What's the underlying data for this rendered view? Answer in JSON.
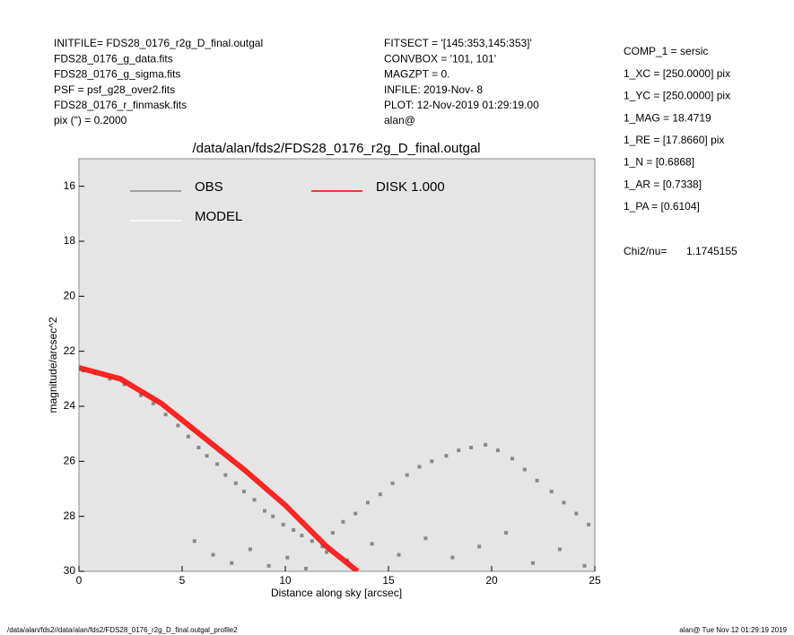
{
  "chart_data": {
    "type": "scatter",
    "title": "/data/alan/fds2/FDS28_0176_r2g_D_final.outgal",
    "xlabel": "Distance along sky [arcsec]",
    "ylabel": "magnitude/arcsec^2",
    "info_left": [
      "INITFILE= FDS28_0176_r2g_D_final.outgal",
      "FDS28_0176_g_data.fits",
      "FDS28_0176_g_sigma.fits",
      "PSF    = psf_g28_over2.fits",
      "FDS28_0176_r_finmask.fits",
      "pix (\") =  0.2000"
    ],
    "info_mid": [
      "FITSECT = '[145:353,145:353]'",
      "CONVBOX = '101, 101'",
      "MAGZPT  =              0.",
      "INFILE: 2019-Nov- 8",
      "PLOT: 12-Nov-2019 01:29:19.00",
      "alan@"
    ],
    "info_right": [
      "COMP_1  = sersic",
      "1_XC    = [250.0000] pix",
      "1_YC    = [250.0000] pix",
      "1_MAG   = 18.4719",
      "1_RE    = [17.8660] pix",
      "1_N     = [0.6868]",
      "1_AR    = [0.7338]",
      "1_PA    = [0.6104]"
    ],
    "chi_label": "Chi2/nu=",
    "chi_value": "1.1745155",
    "footer_left": "/data/alan/fds2//data/alan/fds2/FDS28_0176_r2g_D_final.outgal_profile2",
    "footer_right": "alan@  Tue Nov 12 01:29:19 2019",
    "xlim": [
      0,
      25
    ],
    "ylim": [
      30,
      15
    ],
    "xticks": [
      0,
      5,
      10,
      15,
      20,
      25
    ],
    "yticks": [
      16,
      18,
      20,
      22,
      24,
      26,
      28,
      30
    ],
    "background": "#e5e5e5",
    "series": [
      {
        "name": "OBS",
        "color": "#8a8a8a",
        "type": "scatter",
        "x": [
          0.2,
          0.8,
          1.5,
          2.2,
          3.0,
          3.6,
          4.2,
          4.8,
          5.3,
          5.8,
          6.2,
          6.7,
          7.1,
          7.6,
          8.0,
          8.5,
          9.0,
          9.4,
          9.9,
          10.4,
          10.8,
          11.3,
          11.8,
          12.3,
          12.8,
          13.4,
          14.0,
          14.6,
          15.2,
          15.9,
          16.5,
          17.1,
          17.8,
          18.4,
          19.0,
          19.7,
          20.3,
          21.0,
          21.6,
          22.2,
          22.9,
          23.5,
          24.1,
          24.7,
          5.6,
          6.5,
          7.4,
          8.3,
          9.2,
          10.1,
          11.0,
          12.0,
          13.0,
          14.2,
          15.5,
          16.8,
          18.1,
          19.4,
          20.7,
          22.0,
          23.3,
          24.5
        ],
        "values": [
          22.7,
          22.8,
          23.0,
          23.2,
          23.6,
          23.9,
          24.3,
          24.7,
          25.1,
          25.5,
          25.8,
          26.1,
          26.5,
          26.8,
          27.1,
          27.4,
          27.8,
          28.0,
          28.3,
          28.5,
          28.7,
          28.9,
          29.1,
          28.6,
          28.2,
          27.9,
          27.5,
          27.2,
          26.8,
          26.5,
          26.2,
          26.0,
          25.8,
          25.6,
          25.5,
          25.4,
          25.6,
          25.9,
          26.3,
          26.7,
          27.1,
          27.5,
          27.9,
          28.3,
          28.9,
          29.4,
          29.7,
          29.2,
          29.8,
          29.5,
          29.9,
          29.3,
          29.6,
          29.0,
          29.4,
          28.8,
          29.5,
          29.1,
          28.6,
          29.7,
          29.2,
          29.8
        ]
      },
      {
        "name": "MODEL",
        "color": "#ffffff",
        "type": "line",
        "x": [
          0,
          2,
          4,
          6,
          8,
          10,
          12,
          13.5
        ],
        "values": [
          22.6,
          23.0,
          23.9,
          25.1,
          26.3,
          27.6,
          29.1,
          30
        ]
      },
      {
        "name": "DISK  1.000",
        "color": "#ff0000",
        "type": "line",
        "x": [
          0,
          2,
          4,
          6,
          8,
          10,
          12,
          13.5
        ],
        "values": [
          22.6,
          23.0,
          23.9,
          25.1,
          26.3,
          27.6,
          29.1,
          30
        ]
      }
    ]
  }
}
